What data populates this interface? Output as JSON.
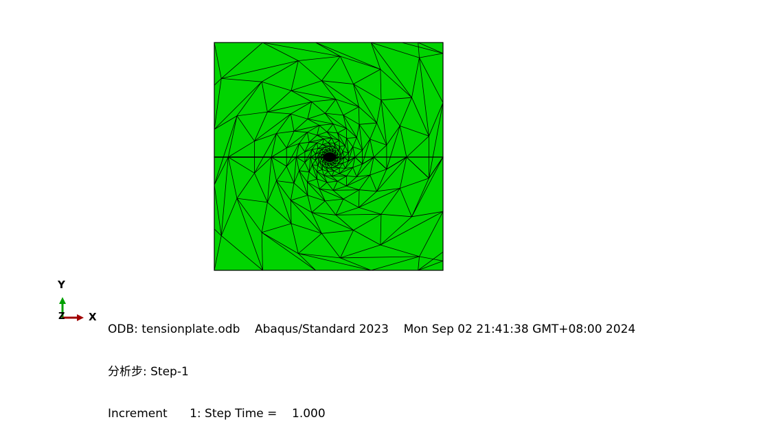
{
  "viewport": {
    "model_color": "#00d400",
    "mesh_line_color": "#000000"
  },
  "triad": {
    "y_label": "Y",
    "x_label": "X",
    "z_label": "Z",
    "y_color": "#00a000",
    "x_color": "#a00000"
  },
  "info": {
    "odb_line": "ODB: tensionplate.odb    Abaqus/Standard 2023    Mon Sep 02 21:41:38 GMT+08:00 2024",
    "step_line": "分析步: Step-1",
    "increment_line": "Increment      1: Step Time =    1.000"
  }
}
